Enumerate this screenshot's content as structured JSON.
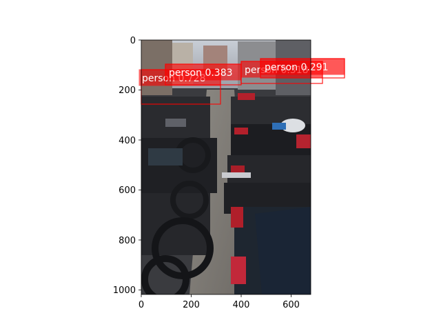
{
  "figure": {
    "image_description_key": "photo",
    "x_ticks": [
      "0",
      "200",
      "400",
      "600"
    ],
    "y_ticks": [
      "0",
      "200",
      "400",
      "600",
      "800",
      "1000"
    ],
    "detections": [
      {
        "label": "person 0.728",
        "class": "person",
        "score": 0.728
      },
      {
        "label": "person 0.383",
        "class": "person",
        "score": 0.383
      },
      {
        "label": "person 0.318",
        "class": "person",
        "score": 0.318
      },
      {
        "label": "person 0.291",
        "class": "person",
        "score": 0.291
      }
    ],
    "colors": {
      "box": "#ff0000",
      "label_bg": "#ff0000",
      "label_text": "#ffffff",
      "axis": "#000000"
    }
  }
}
